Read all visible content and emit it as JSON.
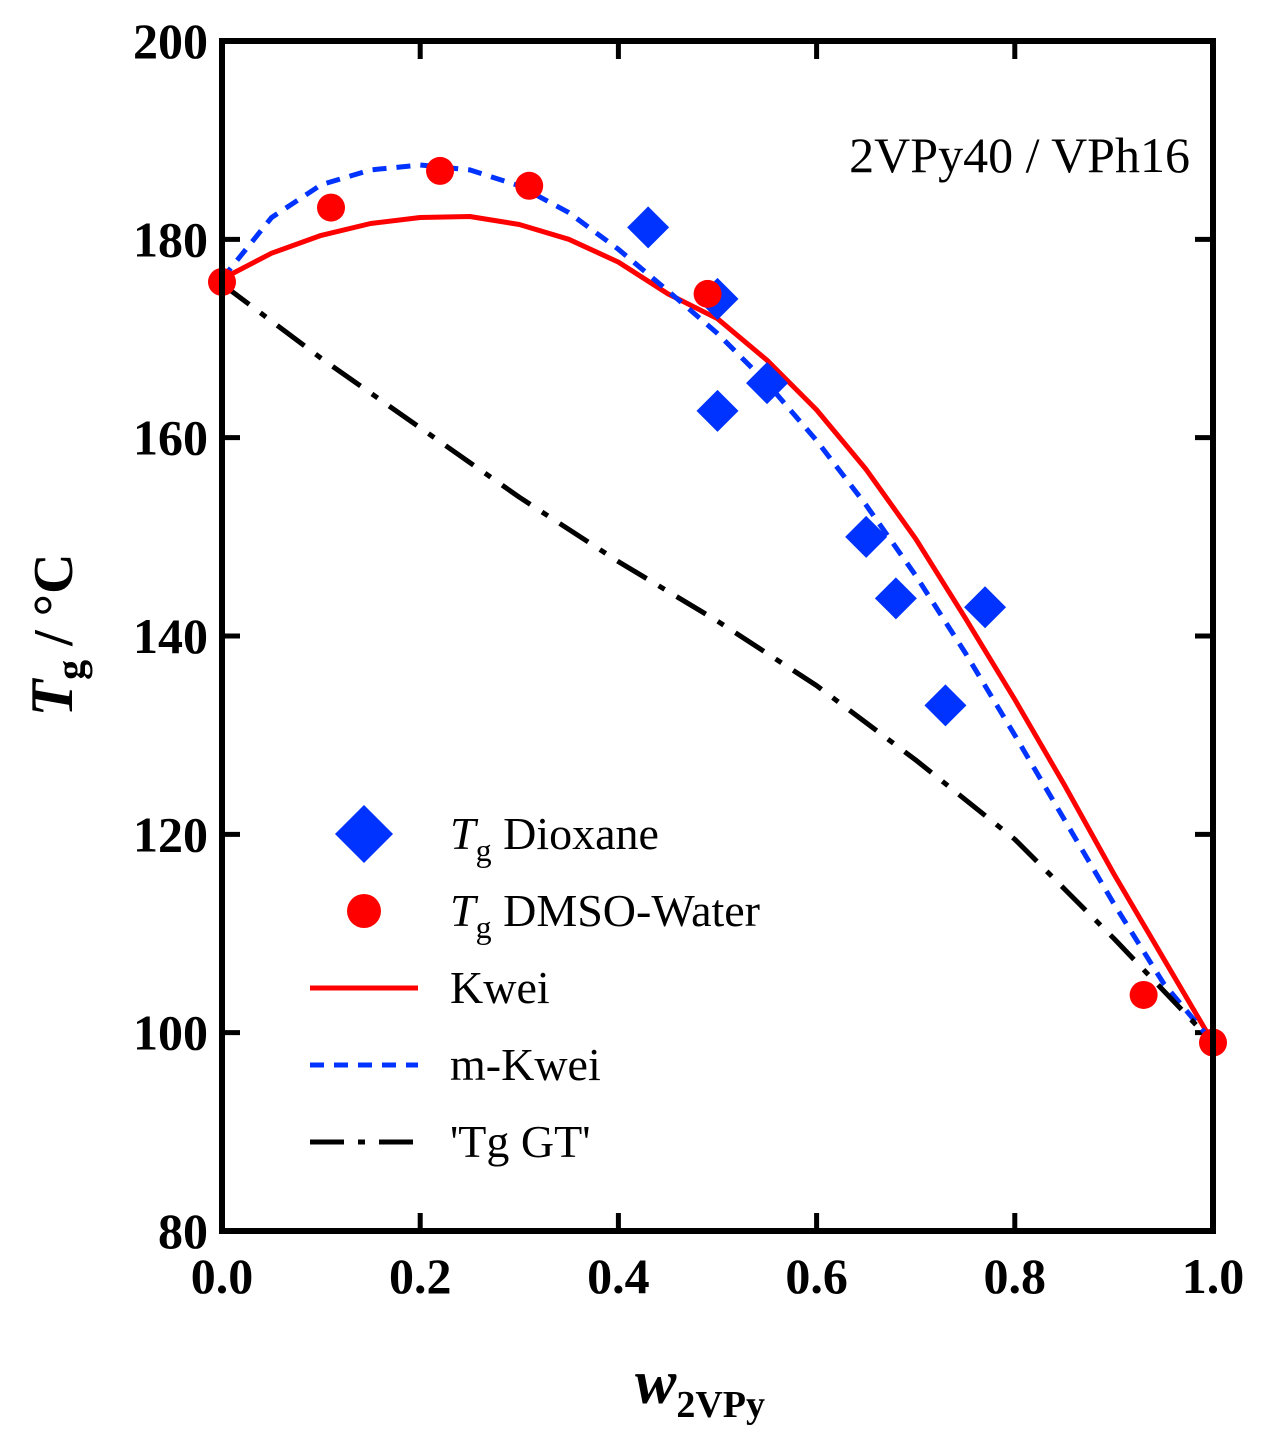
{
  "chart_data": {
    "type": "scatter",
    "annotation": "2VPy40 / VPh16",
    "xlabel": {
      "main": "w",
      "sub": "2VPy"
    },
    "ylabel": {
      "main": "T",
      "sub": "g",
      "rest": " / °C"
    },
    "xlim": [
      0.0,
      1.0
    ],
    "ylim": [
      80,
      200
    ],
    "xticks": [
      "0.0",
      "0.2",
      "0.4",
      "0.6",
      "0.8",
      "1.0"
    ],
    "yticks": [
      "80",
      "100",
      "120",
      "140",
      "160",
      "180",
      "200"
    ],
    "legend_position": "lower-left",
    "legend": [
      {
        "prefix": "T",
        "sub": "g",
        "text": " Dioxane",
        "marker": "diamond"
      },
      {
        "prefix": "T",
        "sub": "g",
        "text": " DMSO-Water",
        "marker": "circle"
      },
      {
        "prefix": "",
        "sub": "",
        "text": "Kwei",
        "marker": "solid"
      },
      {
        "prefix": "",
        "sub": "",
        "text": "m-Kwei",
        "marker": "dashed"
      },
      {
        "prefix": "",
        "sub": "",
        "text": "'Tg GT'",
        "marker": "dashdot"
      }
    ],
    "series": [
      {
        "name": "Tg Dioxane",
        "kind": "scatter",
        "marker": "diamond",
        "color": "#0033ff",
        "points": [
          [
            0.43,
            181.2
          ],
          [
            0.5,
            174.0
          ],
          [
            0.5,
            162.7
          ],
          [
            0.55,
            165.5
          ],
          [
            0.65,
            150.0
          ],
          [
            0.68,
            143.8
          ],
          [
            0.73,
            133.0
          ],
          [
            0.77,
            142.9
          ]
        ]
      },
      {
        "name": "Tg DMSO-Water",
        "kind": "scatter",
        "marker": "circle",
        "color": "#ff0000",
        "points": [
          [
            0.0,
            175.7
          ],
          [
            0.11,
            183.2
          ],
          [
            0.22,
            186.9
          ],
          [
            0.31,
            185.4
          ],
          [
            0.49,
            174.5
          ],
          [
            0.93,
            103.8
          ],
          [
            1.0,
            99.0
          ]
        ]
      },
      {
        "name": "Kwei",
        "kind": "line",
        "style": "solid",
        "color": "#ff0000",
        "points": [
          [
            0.0,
            176.0
          ],
          [
            0.05,
            178.6
          ],
          [
            0.1,
            180.4
          ],
          [
            0.15,
            181.6
          ],
          [
            0.2,
            182.2
          ],
          [
            0.25,
            182.3
          ],
          [
            0.3,
            181.5
          ],
          [
            0.35,
            180.0
          ],
          [
            0.4,
            177.7
          ],
          [
            0.45,
            174.5
          ],
          [
            0.5,
            172.0
          ],
          [
            0.55,
            167.8
          ],
          [
            0.6,
            162.8
          ],
          [
            0.65,
            156.8
          ],
          [
            0.7,
            149.8
          ],
          [
            0.75,
            141.8
          ],
          [
            0.8,
            133.6
          ],
          [
            0.85,
            125.0
          ],
          [
            0.9,
            116.0
          ],
          [
            0.95,
            107.5
          ],
          [
            1.0,
            99.0
          ]
        ]
      },
      {
        "name": "m-Kwei",
        "kind": "line",
        "style": "dashed",
        "color": "#0033ff",
        "points": [
          [
            0.0,
            176.0
          ],
          [
            0.05,
            182.2
          ],
          [
            0.1,
            185.5
          ],
          [
            0.15,
            187.0
          ],
          [
            0.2,
            187.5
          ],
          [
            0.25,
            187.0
          ],
          [
            0.3,
            185.4
          ],
          [
            0.35,
            182.7
          ],
          [
            0.4,
            179.0
          ],
          [
            0.45,
            174.8
          ],
          [
            0.5,
            170.5
          ],
          [
            0.55,
            165.5
          ],
          [
            0.6,
            159.7
          ],
          [
            0.65,
            153.2
          ],
          [
            0.7,
            146.1
          ],
          [
            0.75,
            138.3
          ],
          [
            0.8,
            130.0
          ],
          [
            0.85,
            121.5
          ],
          [
            0.9,
            113.0
          ],
          [
            0.95,
            105.0
          ],
          [
            1.0,
            99.0
          ]
        ]
      },
      {
        "name": "'Tg GT'",
        "kind": "line",
        "style": "dashdot",
        "color": "#000000",
        "points": [
          [
            0.0,
            175.5
          ],
          [
            0.1,
            168.0
          ],
          [
            0.2,
            161.0
          ],
          [
            0.3,
            154.0
          ],
          [
            0.4,
            147.5
          ],
          [
            0.5,
            141.5
          ],
          [
            0.6,
            135.0
          ],
          [
            0.7,
            127.5
          ],
          [
            0.8,
            119.5
          ],
          [
            0.9,
            109.5
          ],
          [
            1.0,
            99.0
          ]
        ]
      }
    ]
  }
}
